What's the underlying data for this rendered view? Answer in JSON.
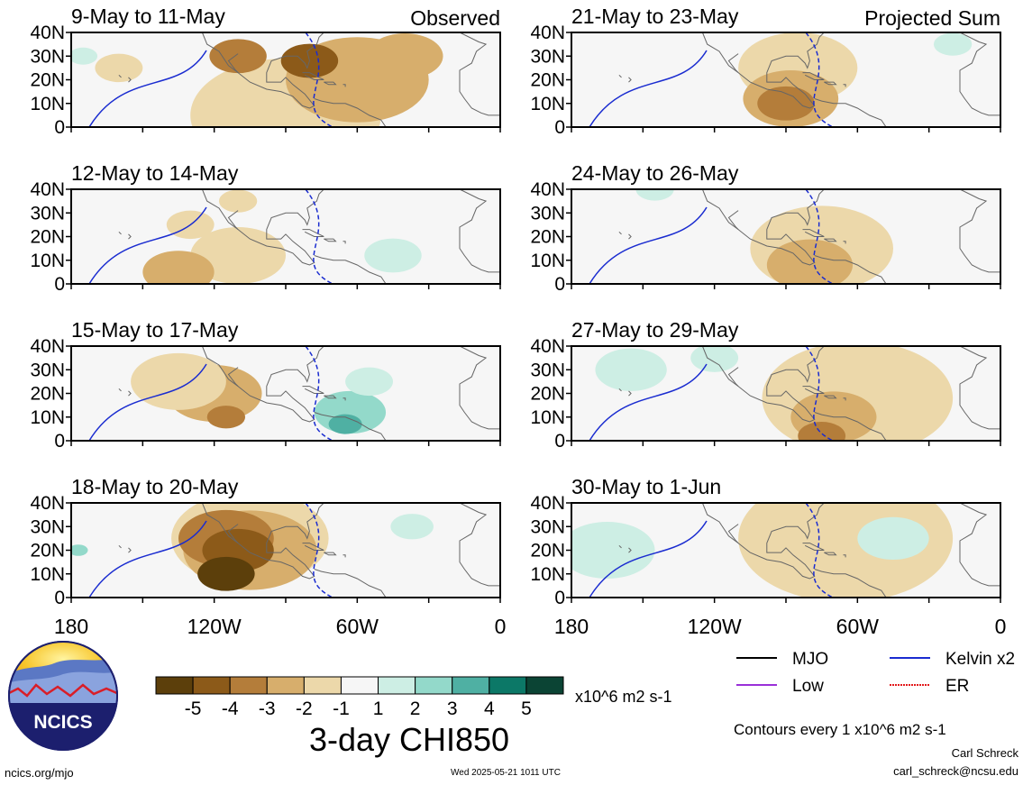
{
  "panels": [
    {
      "date_range": "9-May to 11-May",
      "tag": "Observed",
      "anoms": [
        [
          -2,
          300,
          20,
          30
        ],
        [
          -4,
          280,
          28,
          12
        ],
        [
          -3,
          250,
          30,
          12
        ],
        [
          -2,
          320,
          30,
          16
        ],
        [
          -1,
          270,
          5,
          40
        ],
        [
          1,
          185,
          30,
          6
        ],
        [
          -1,
          200,
          25,
          10
        ]
      ]
    },
    {
      "date_range": "12-May to 14-May",
      "tag": "",
      "anoms": [
        [
          -2,
          225,
          5,
          15
        ],
        [
          -1,
          250,
          12,
          20
        ],
        [
          -1,
          230,
          25,
          10
        ],
        [
          1,
          315,
          12,
          12
        ],
        [
          -1,
          250,
          35,
          8
        ]
      ]
    },
    {
      "date_range": "15-May to 17-May",
      "tag": "",
      "anoms": [
        [
          -2,
          240,
          20,
          20
        ],
        [
          -3,
          245,
          10,
          8
        ],
        [
          -1,
          225,
          25,
          20
        ],
        [
          2,
          297,
          12,
          15
        ],
        [
          3,
          295,
          7,
          7
        ],
        [
          1,
          305,
          25,
          10
        ]
      ]
    },
    {
      "date_range": "18-May to 20-May",
      "tag": "",
      "anoms": [
        [
          -5,
          245,
          10,
          12
        ],
        [
          -4,
          250,
          20,
          15
        ],
        [
          -3,
          245,
          25,
          20
        ],
        [
          -2,
          255,
          20,
          28
        ],
        [
          -1,
          255,
          25,
          33
        ],
        [
          2,
          183,
          20,
          4
        ],
        [
          1,
          323,
          30,
          9
        ]
      ]
    },
    {
      "date_range": "21-May to 23-May",
      "tag": "Projected Sum",
      "anoms": [
        [
          -3,
          270,
          10,
          12
        ],
        [
          -2,
          272,
          12,
          20
        ],
        [
          -1,
          275,
          25,
          25
        ],
        [
          1,
          340,
          35,
          8
        ]
      ]
    },
    {
      "date_range": "24-May to 26-May",
      "tag": "",
      "anoms": [
        [
          -2,
          280,
          8,
          18
        ],
        [
          -1,
          285,
          15,
          30
        ],
        [
          1,
          215,
          40,
          8
        ]
      ]
    },
    {
      "date_range": "27-May to 29-May",
      "tag": "",
      "anoms": [
        [
          -3,
          285,
          2,
          10
        ],
        [
          -2,
          290,
          10,
          18
        ],
        [
          -1,
          300,
          18,
          40
        ],
        [
          1,
          205,
          30,
          15
        ],
        [
          1,
          240,
          35,
          10
        ]
      ]
    },
    {
      "date_range": "30-May to 1-Jun",
      "tag": "",
      "anoms": [
        [
          -1,
          295,
          25,
          45
        ],
        [
          1,
          195,
          20,
          20
        ],
        [
          1,
          315,
          25,
          15
        ]
      ]
    }
  ],
  "lat_labels": [
    "40N",
    "30N",
    "20N",
    "10N",
    "0"
  ],
  "lon_labels": [
    "180",
    "120W",
    "60W",
    "0"
  ],
  "colorbar": {
    "ticks": [
      "-5",
      "-4",
      "-3",
      "-2",
      "-1",
      "1",
      "2",
      "3",
      "4",
      "5"
    ],
    "colors": [
      "#5c3f0b",
      "#8c5a19",
      "#b47d3a",
      "#d7ae6c",
      "#ecd8aa",
      "#f6f6f6",
      "#cdeee4",
      "#93d9ca",
      "#4fb0a3",
      "#0c7867",
      "#0b4434"
    ],
    "units": "x10^6 m2 s-1"
  },
  "legend": [
    {
      "label": "MJO",
      "color": "#000000",
      "dashed": false
    },
    {
      "label": "Kelvin x2",
      "color": "#1a2cd0",
      "dashed": false
    },
    {
      "label": "Low",
      "color": "#9a30d8",
      "dashed": false
    },
    {
      "label": "ER",
      "color": "#e31a1c",
      "dashed": true
    }
  ],
  "main_title": "3-day CHI850",
  "contour_note": "Contours every 1 x10^6 m2 s-1",
  "author": "Carl Schreck",
  "email": "carl_schreck@ncsu.edu",
  "website": "ncics.org/mjo",
  "timestamp": "Wed 2025-05-21 1011 UTC",
  "logo_text": "NCICS"
}
